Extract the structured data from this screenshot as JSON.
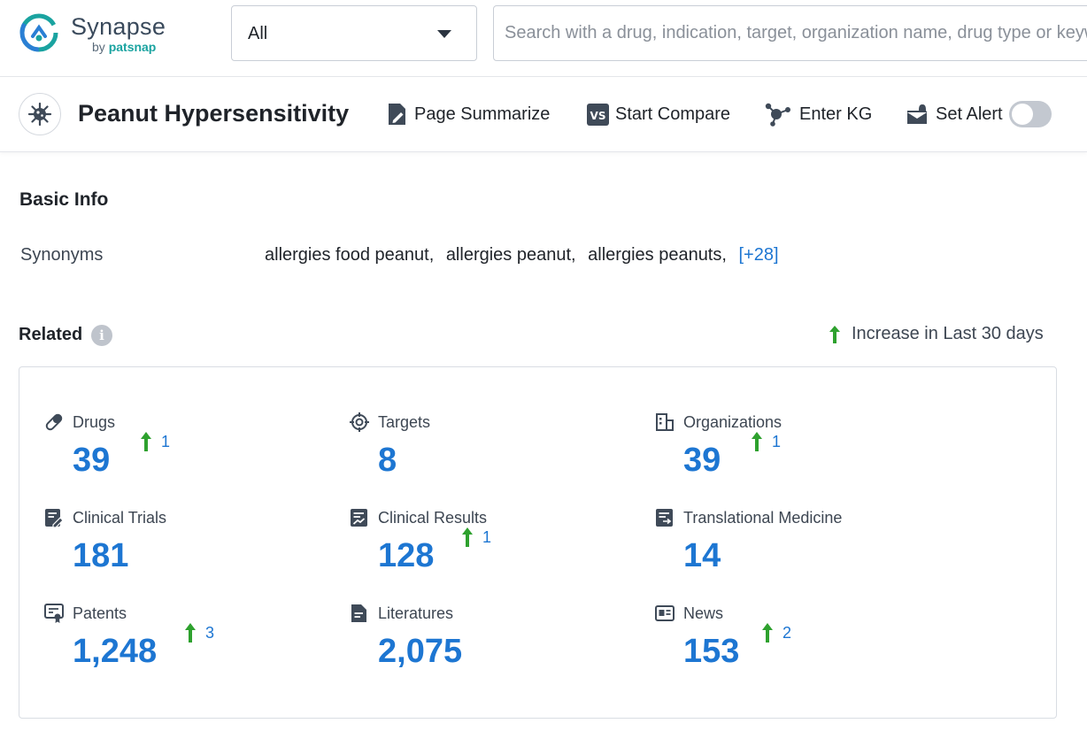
{
  "app": {
    "logo_name": "Synapse",
    "logo_by": "by",
    "logo_brand": "patsnap",
    "brand_colors": {
      "primary": "#1d76d2",
      "logo_teal": "#1aa3a0",
      "increase_green": "#2ea12e"
    }
  },
  "search": {
    "scope_value": "All",
    "placeholder": "Search with a drug, indication, target, organization name, drug type or keyword",
    "value": ""
  },
  "header": {
    "title": "Peanut Hypersensitivity",
    "actions": {
      "summarize": "Page Summarize",
      "compare": "Start Compare",
      "kg": "Enter KG",
      "alert": "Set Alert"
    },
    "alert_enabled": false
  },
  "basic_info": {
    "heading": "Basic Info",
    "synonyms_label": "Synonyms",
    "synonyms": [
      "allergies food peanut,",
      "allergies peanut,",
      "allergies peanuts,"
    ],
    "synonyms_more": "[+28]"
  },
  "related": {
    "heading": "Related",
    "legend": "Increase in Last 30 days",
    "stats": [
      {
        "label": "Drugs",
        "count": "39",
        "increase": "1",
        "icon": "pill-icon"
      },
      {
        "label": "Targets",
        "count": "8",
        "increase": null,
        "icon": "target-icon"
      },
      {
        "label": "Organizations",
        "count": "39",
        "increase": "1",
        "icon": "building-icon"
      },
      {
        "label": "Clinical Trials",
        "count": "181",
        "increase": null,
        "icon": "clinical-trials-icon"
      },
      {
        "label": "Clinical Results",
        "count": "128",
        "increase": "1",
        "icon": "clinical-results-icon"
      },
      {
        "label": "Translational Medicine",
        "count": "14",
        "increase": null,
        "icon": "translational-medicine-icon"
      },
      {
        "label": "Patents",
        "count": "1,248",
        "increase": "3",
        "icon": "patent-icon"
      },
      {
        "label": "Literatures",
        "count": "2,075",
        "increase": null,
        "icon": "document-icon"
      },
      {
        "label": "News",
        "count": "153",
        "increase": "2",
        "icon": "news-icon"
      }
    ]
  }
}
